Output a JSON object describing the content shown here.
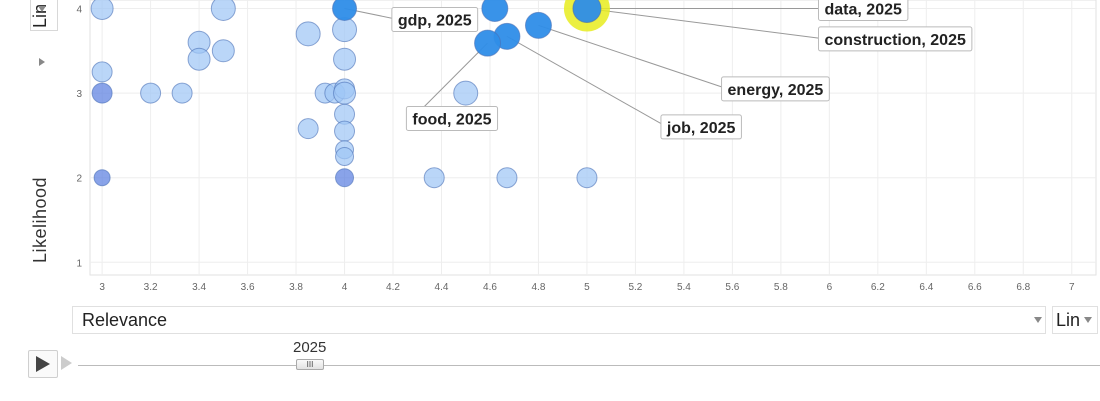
{
  "y_axis": {
    "title": "Likelihood",
    "scale": "Lin"
  },
  "x_axis": {
    "selector": "Relevance",
    "scale": "Lin"
  },
  "timeline": {
    "year": "2025",
    "thumb_glyph": "III"
  },
  "colors": {
    "bubble_light": "#9fc6f5",
    "bubble_medium": "#6aaaf0",
    "bubble_dark": "#2e8de8",
    "bubble_deep": "#5b7fe0",
    "highlight": "#e7ec1e"
  },
  "chart_data": {
    "type": "scatter",
    "xlabel": "Relevance",
    "ylabel": "Likelihood",
    "xlim": [
      2.95,
      7.1
    ],
    "ylim": [
      0.85,
      4.1
    ],
    "x_ticks": [
      3,
      3.2,
      3.4,
      3.6,
      3.8,
      4,
      4.2,
      4.4,
      4.6,
      4.8,
      5,
      5.2,
      5.4,
      5.6,
      5.8,
      6,
      6.2,
      6.4,
      6.6,
      6.8,
      7
    ],
    "y_ticks": [
      1,
      2,
      3,
      4
    ],
    "grid": true,
    "points": [
      {
        "x": 3,
        "y": 4,
        "r": 11,
        "shade": "light"
      },
      {
        "x": 3.5,
        "y": 4,
        "r": 12,
        "shade": "light"
      },
      {
        "x": 3.4,
        "y": 3.6,
        "r": 11,
        "shade": "light"
      },
      {
        "x": 3.5,
        "y": 3.5,
        "r": 11,
        "shade": "light"
      },
      {
        "x": 3.4,
        "y": 3.4,
        "r": 11,
        "shade": "light"
      },
      {
        "x": 3.85,
        "y": 3.7,
        "r": 12,
        "shade": "light"
      },
      {
        "x": 4,
        "y": 3.75,
        "r": 12,
        "shade": "light"
      },
      {
        "x": 4,
        "y": 3.4,
        "r": 11,
        "shade": "light"
      },
      {
        "x": 3,
        "y": 3.25,
        "r": 10,
        "shade": "light"
      },
      {
        "x": 3,
        "y": 3,
        "r": 10,
        "shade": "deep"
      },
      {
        "x": 3.2,
        "y": 3,
        "r": 10,
        "shade": "light"
      },
      {
        "x": 3.33,
        "y": 3,
        "r": 10,
        "shade": "light"
      },
      {
        "x": 3.92,
        "y": 3,
        "r": 10,
        "shade": "light"
      },
      {
        "x": 3.96,
        "y": 3,
        "r": 10,
        "shade": "light"
      },
      {
        "x": 4,
        "y": 3.05,
        "r": 10,
        "shade": "light"
      },
      {
        "x": 4,
        "y": 3,
        "r": 11,
        "shade": "light"
      },
      {
        "x": 4.5,
        "y": 3,
        "r": 12,
        "shade": "light"
      },
      {
        "x": 4,
        "y": 2.75,
        "r": 10,
        "shade": "light"
      },
      {
        "x": 3.85,
        "y": 2.58,
        "r": 10,
        "shade": "light"
      },
      {
        "x": 4,
        "y": 2.55,
        "r": 10,
        "shade": "light"
      },
      {
        "x": 4,
        "y": 2.33,
        "r": 9,
        "shade": "light"
      },
      {
        "x": 4,
        "y": 2.25,
        "r": 9,
        "shade": "light"
      },
      {
        "x": 3,
        "y": 2,
        "r": 8,
        "shade": "deep"
      },
      {
        "x": 4,
        "y": 2,
        "r": 9,
        "shade": "deep"
      },
      {
        "x": 4.37,
        "y": 2,
        "r": 10,
        "shade": "light"
      },
      {
        "x": 4.67,
        "y": 2,
        "r": 10,
        "shade": "light"
      },
      {
        "x": 5,
        "y": 2,
        "r": 10,
        "shade": "light"
      },
      {
        "x": 4,
        "y": 4,
        "r": 12,
        "shade": "dark",
        "label": "gdp, 2025"
      },
      {
        "x": 4.62,
        "y": 4,
        "r": 13,
        "shade": "dark"
      },
      {
        "x": 4.8,
        "y": 3.8,
        "r": 13,
        "shade": "dark",
        "label": "energy, 2025"
      },
      {
        "x": 4.67,
        "y": 3.67,
        "r": 13,
        "shade": "dark",
        "label": "job, 2025"
      },
      {
        "x": 4.59,
        "y": 3.59,
        "r": 13,
        "shade": "dark",
        "label": "food, 2025"
      },
      {
        "x": 5,
        "y": 4,
        "r": 14,
        "shade": "dark",
        "label": "construction, 2025"
      },
      {
        "x": 5,
        "y": 4,
        "r": 14,
        "shade": "dark",
        "label": "data, 2025",
        "highlight": true
      }
    ],
    "labels": [
      {
        "text": "gdp, 2025",
        "anchor": [
          4,
          4
        ],
        "tx": 4.22,
        "ty": 3.87
      },
      {
        "text": "data, 2025",
        "anchor": [
          5,
          4
        ],
        "tx": 5.98,
        "ty": 4.0
      },
      {
        "text": "construction, 2025",
        "anchor": [
          5,
          4
        ],
        "tx": 5.98,
        "ty": 3.64
      },
      {
        "text": "energy, 2025",
        "anchor": [
          4.8,
          3.8
        ],
        "tx": 5.58,
        "ty": 3.05
      },
      {
        "text": "job, 2025",
        "anchor": [
          4.67,
          3.67
        ],
        "tx": 5.33,
        "ty": 2.6
      },
      {
        "text": "food, 2025",
        "anchor": [
          4.59,
          3.59
        ],
        "tx": 4.28,
        "ty": 2.7
      }
    ]
  }
}
